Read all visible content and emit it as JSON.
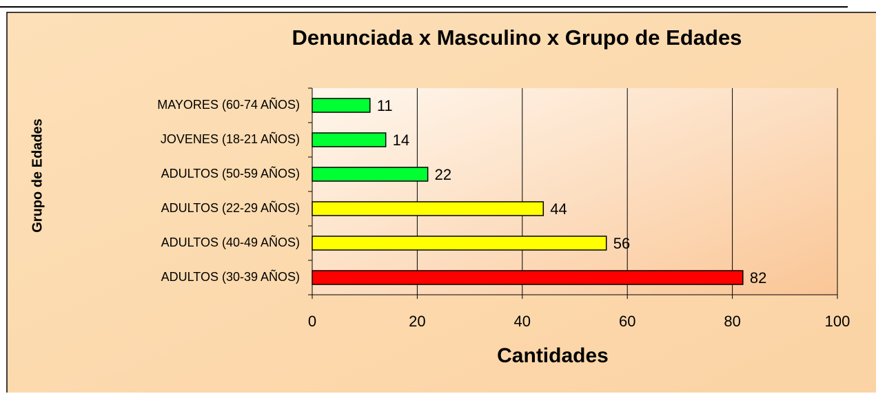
{
  "chart_data": {
    "type": "bar",
    "orientation": "horizontal",
    "title": "Denunciada x Masculino x Grupo de Edades",
    "x_label": "Cantidades",
    "y_label": "Grupo de Edades",
    "categories": [
      "MAYORES (60-74 AÑOS)",
      "JOVENES (18-21 AÑOS)",
      "ADULTOS (50-59 AÑOS)",
      "ADULTOS (22-29 AÑOS)",
      "ADULTOS (40-49 AÑOS)",
      "ADULTOS (30-39 AÑOS)"
    ],
    "values": [
      11,
      14,
      22,
      44,
      56,
      82
    ],
    "colors": [
      "#00ff33",
      "#00ff33",
      "#00ff33",
      "#ffff00",
      "#ffff00",
      "#ff0000"
    ],
    "xlim": [
      0,
      100
    ],
    "xticks": [
      0,
      20,
      40,
      60,
      80,
      100
    ],
    "grid": true
  }
}
